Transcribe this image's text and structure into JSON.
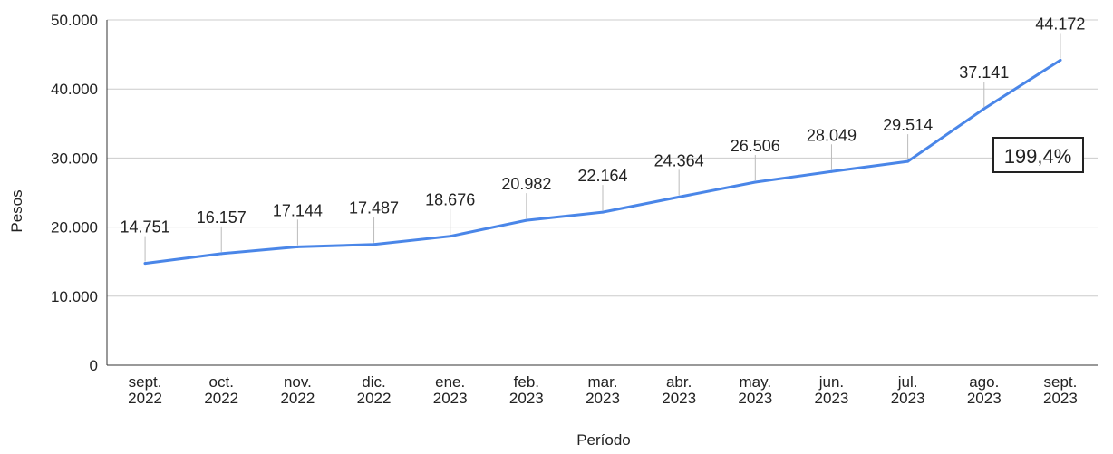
{
  "chart_data": {
    "type": "line",
    "title": "",
    "xlabel": "Período",
    "ylabel": "Pesos",
    "ylim": [
      0,
      50000
    ],
    "yticks": [
      {
        "value": 0,
        "label": "0"
      },
      {
        "value": 10000,
        "label": "10.000"
      },
      {
        "value": 20000,
        "label": "20.000"
      },
      {
        "value": 30000,
        "label": "30.000"
      },
      {
        "value": 40000,
        "label": "40.000"
      },
      {
        "value": 50000,
        "label": "50.000"
      }
    ],
    "categories": [
      [
        "sept.",
        "2022"
      ],
      [
        "oct.",
        "2022"
      ],
      [
        "nov.",
        "2022"
      ],
      [
        "dic.",
        "2022"
      ],
      [
        "ene.",
        "2023"
      ],
      [
        "feb.",
        "2023"
      ],
      [
        "mar.",
        "2023"
      ],
      [
        "abr.",
        "2023"
      ],
      [
        "may.",
        "2023"
      ],
      [
        "jun.",
        "2023"
      ],
      [
        "jul.",
        "2023"
      ],
      [
        "ago.",
        "2023"
      ],
      [
        "sept.",
        "2023"
      ]
    ],
    "series": [
      {
        "values": [
          14751,
          16157,
          17144,
          17487,
          18676,
          20982,
          22164,
          24364,
          26506,
          28049,
          29514,
          37141,
          44172
        ],
        "labels": [
          "14.751",
          "16.157",
          "17.144",
          "17.487",
          "18.676",
          "20.982",
          "22.164",
          "24.364",
          "26.506",
          "28.049",
          "29.514",
          "37.141",
          "44.172"
        ],
        "color": "#4A86E8"
      }
    ],
    "annotation": "199,4%",
    "grid": true,
    "colors": {
      "grid": "#cccccc",
      "axis": "#333333",
      "line": "#4A86E8",
      "leader": "#bbbbbb",
      "text": "#222222"
    }
  }
}
